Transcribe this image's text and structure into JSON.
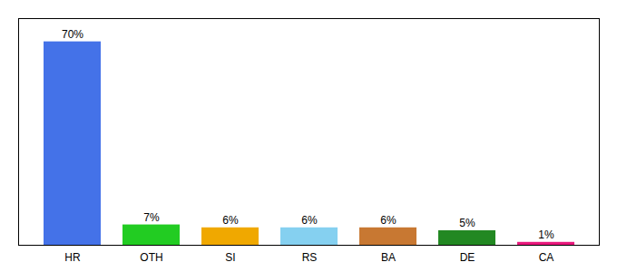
{
  "chart_data": {
    "type": "bar",
    "categories": [
      "HR",
      "OTH",
      "SI",
      "RS",
      "BA",
      "DE",
      "CA"
    ],
    "values": [
      70,
      7,
      6,
      6,
      6,
      5,
      1
    ],
    "value_labels": [
      "70%",
      "7%",
      "6%",
      "6%",
      "6%",
      "5%",
      "1%"
    ],
    "colors": [
      "#4472e8",
      "#22cc22",
      "#f0a800",
      "#85d0f0",
      "#c87832",
      "#228822",
      "#e8187c"
    ],
    "ylim": [
      0,
      78
    ],
    "data_labels": true,
    "tick_labels": "x"
  }
}
